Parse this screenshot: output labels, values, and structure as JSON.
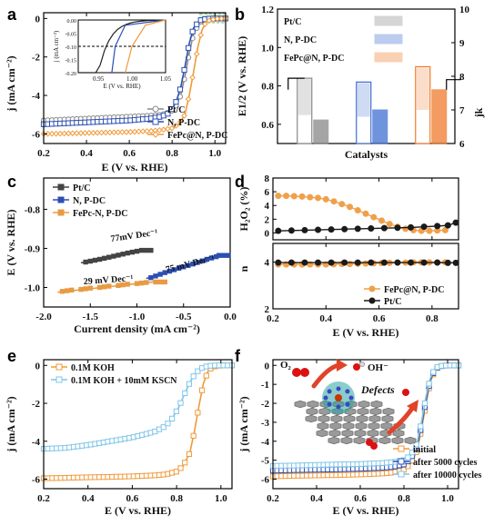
{
  "chart_data": [
    {
      "panel": "a",
      "type": "line",
      "xlabel": "E (V vs. RHE)",
      "ylabel": "j (mA cm⁻²)",
      "xlim": [
        0.2,
        1.05
      ],
      "ylim": [
        -6.5,
        0.3
      ],
      "xticks": [
        "0.2",
        "0.4",
        "0.6",
        "0.8",
        "1.0"
      ],
      "yticks": [
        "0",
        "-2",
        "-4",
        "-6"
      ],
      "series": [
        {
          "name": "Pt/C",
          "color": "#8c8c8c",
          "marker": "circle-open",
          "x": [
            0.2,
            0.3,
            0.4,
            0.5,
            0.6,
            0.7,
            0.75,
            0.78,
            0.8,
            0.82,
            0.84,
            0.86,
            0.88,
            0.9,
            0.93,
            0.96,
            1.0,
            1.05
          ],
          "y": [
            -5.3,
            -5.25,
            -5.2,
            -5.15,
            -5.1,
            -5.05,
            -5.0,
            -4.9,
            -4.8,
            -4.5,
            -4.0,
            -3.0,
            -1.8,
            -0.8,
            -0.2,
            -0.03,
            0,
            0
          ]
        },
        {
          "name": "N, P-DC",
          "color": "#2c4fb3",
          "marker": "square-open",
          "x": [
            0.2,
            0.3,
            0.4,
            0.5,
            0.6,
            0.7,
            0.75,
            0.78,
            0.8,
            0.82,
            0.84,
            0.86,
            0.88,
            0.9,
            0.93,
            0.96,
            1.0,
            1.05
          ],
          "y": [
            -5.5,
            -5.45,
            -5.4,
            -5.35,
            -5.3,
            -5.2,
            -5.1,
            -4.95,
            -4.7,
            -4.3,
            -3.6,
            -2.5,
            -1.3,
            -0.5,
            -0.1,
            -0.02,
            0,
            0
          ]
        },
        {
          "name": "FePc@N, P-DC",
          "color": "#f09a3a",
          "marker": "diamond-open",
          "x": [
            0.2,
            0.3,
            0.4,
            0.5,
            0.6,
            0.7,
            0.75,
            0.8,
            0.83,
            0.86,
            0.88,
            0.9,
            0.92,
            0.94,
            0.96,
            1.0,
            1.05
          ],
          "y": [
            -6.0,
            -5.98,
            -5.95,
            -5.93,
            -5.9,
            -5.85,
            -5.8,
            -5.7,
            -5.5,
            -5.0,
            -4.0,
            -2.8,
            -1.5,
            -0.6,
            -0.15,
            -0.02,
            0
          ]
        }
      ],
      "inset": {
        "ylabel": "j (mA cm⁻²)",
        "xlabel": "E (V vs. RHE)",
        "xlim": [
          0.92,
          1.05
        ],
        "ylim": [
          -0.2,
          0.0
        ],
        "xticks": [
          "0.95",
          "1.00",
          "1.05"
        ],
        "yticks": [
          "0.00",
          "-0.05",
          "-0.10",
          "-0.15",
          "-0.20"
        ]
      }
    },
    {
      "panel": "b",
      "type": "bar",
      "xlabel": "Catalysts",
      "ylabel": "E1/2 (V vs. RHE)",
      "y2label": "jk",
      "categories": [
        "Pt/C",
        "N, P-DC",
        "FePc@N, P-DC"
      ],
      "ylim": [
        0.5,
        1.2
      ],
      "y2lim": [
        6,
        10
      ],
      "yticks": [
        "0.6",
        "0.8",
        "1.0",
        "1.2"
      ],
      "y2ticks": [
        "6",
        "7",
        "8",
        "9",
        "10"
      ],
      "series": [
        {
          "name": "E1/2",
          "axis": "left",
          "values": [
            0.84,
            0.82,
            0.9
          ]
        },
        {
          "name": "jk",
          "axis": "right",
          "values": [
            6.7,
            7.0,
            7.6
          ]
        }
      ],
      "legend": [
        "Pt/C",
        "N, P-DC",
        "FePc@N, P-DC"
      ],
      "colors": [
        "#888888",
        "#3f6fd1",
        "#f07a2c"
      ]
    },
    {
      "panel": "c",
      "type": "line",
      "xlabel": "Current density (mA cm⁻²)",
      "ylabel": "E (V vs. RHE)",
      "xlim": [
        -2.0,
        0.0
      ],
      "ylim": [
        -1.05,
        -0.72
      ],
      "xticks": [
        "-2.0",
        "-1.5",
        "-1.0",
        "-0.5",
        "0.0"
      ],
      "yticks": [
        "-0.8",
        "-0.9",
        "-1.0"
      ],
      "series": [
        {
          "name": "Pt/C",
          "color": "#444444",
          "x": [
            -1.55,
            -1.4,
            -1.25,
            -1.1,
            -0.95
          ],
          "y": [
            -0.935,
            -0.928,
            -0.92,
            -0.912,
            -0.905
          ]
        },
        {
          "name": "N, P-DC",
          "color": "#2c4fb3",
          "x": [
            -0.85,
            -0.7,
            -0.55,
            -0.4,
            -0.25,
            -0.12
          ],
          "y": [
            -0.975,
            -0.962,
            -0.951,
            -0.94,
            -0.928,
            -0.918
          ]
        },
        {
          "name": "FePc-N, P-DC",
          "color": "#e89b42",
          "x": [
            -1.8,
            -1.6,
            -1.4,
            -1.2,
            -1.0,
            -0.8
          ],
          "y": [
            -1.01,
            -1.005,
            -1.0,
            -0.995,
            -0.99,
            -0.986
          ]
        }
      ],
      "annotations": [
        "77mV Dec⁻¹",
        "75 mV Dec⁻¹",
        "29 mV Dec⁻¹"
      ]
    },
    {
      "panel": "d",
      "type": "line",
      "xlabel": "E (V vs. RHE)",
      "ylabel_top": "H₂O₂ (%)",
      "ylabel_bottom": "n",
      "xlim": [
        0.2,
        0.9
      ],
      "xticks": [
        "0.2",
        "0.4",
        "0.6",
        "0.8"
      ],
      "top": {
        "ylim": [
          -1,
          8
        ],
        "yticks": [
          "0",
          "2",
          "4",
          "6",
          "8"
        ]
      },
      "bottom": {
        "ylim": [
          2,
          4.8
        ],
        "yticks": [
          "2",
          "4"
        ]
      },
      "series": [
        {
          "name": "FePc@N, P-DC",
          "color": "#f0a04a",
          "x": [
            0.22,
            0.25,
            0.28,
            0.31,
            0.34,
            0.37,
            0.4,
            0.43,
            0.46,
            0.49,
            0.52,
            0.55,
            0.58,
            0.61,
            0.64,
            0.67,
            0.7,
            0.73,
            0.76,
            0.79,
            0.82,
            0.85
          ],
          "h2o2": [
            5.4,
            5.4,
            5.35,
            5.3,
            5.2,
            5.1,
            4.9,
            4.6,
            4.2,
            3.8,
            3.3,
            2.8,
            2.3,
            1.8,
            1.3,
            0.9,
            0.6,
            0.4,
            0.3,
            0.3,
            0.35,
            0.4
          ],
          "n": [
            3.9,
            3.9,
            3.9,
            3.9,
            3.9,
            3.9,
            3.9,
            3.91,
            3.92,
            3.92,
            3.93,
            3.94,
            3.95,
            3.96,
            3.97,
            3.98,
            3.98,
            3.99,
            3.99,
            3.99,
            3.99,
            3.99
          ]
        },
        {
          "name": "Pt/C",
          "color": "#1a1a1a",
          "x": [
            0.22,
            0.27,
            0.32,
            0.37,
            0.42,
            0.47,
            0.52,
            0.57,
            0.62,
            0.67,
            0.72,
            0.77,
            0.82,
            0.86,
            0.89
          ],
          "h2o2": [
            0.3,
            0.35,
            0.4,
            0.45,
            0.5,
            0.55,
            0.6,
            0.65,
            0.7,
            0.75,
            0.8,
            0.9,
            1.0,
            1.1,
            1.5
          ],
          "n": [
            3.98,
            3.98,
            3.98,
            3.98,
            3.98,
            3.98,
            3.98,
            3.98,
            3.98,
            3.98,
            3.98,
            3.98,
            3.98,
            3.97,
            3.97
          ]
        }
      ]
    },
    {
      "panel": "e",
      "type": "line",
      "xlabel": "E (V vs. RHE)",
      "ylabel": "j (mA cm⁻²)",
      "xlim": [
        0.2,
        1.05
      ],
      "ylim": [
        -6.5,
        0.3
      ],
      "xticks": [
        "0.2",
        "0.4",
        "0.6",
        "0.8",
        "1.0"
      ],
      "yticks": [
        "0",
        "-2",
        "-4",
        "-6"
      ],
      "series": [
        {
          "name": "0.1M KOH",
          "color": "#f09a3a",
          "x": [
            0.2,
            0.3,
            0.4,
            0.5,
            0.6,
            0.7,
            0.75,
            0.8,
            0.83,
            0.86,
            0.88,
            0.9,
            0.92,
            0.94,
            0.96,
            1.0,
            1.05
          ],
          "y": [
            -5.95,
            -5.93,
            -5.9,
            -5.88,
            -5.85,
            -5.8,
            -5.75,
            -5.6,
            -5.3,
            -4.6,
            -3.5,
            -2.2,
            -1.0,
            -0.35,
            -0.08,
            0,
            0
          ]
        },
        {
          "name": "0.1M KOH + 10mM KSCN",
          "color": "#7fc6e8",
          "x": [
            0.2,
            0.3,
            0.4,
            0.5,
            0.6,
            0.7,
            0.75,
            0.78,
            0.81,
            0.84,
            0.86,
            0.88,
            0.9,
            0.92,
            0.94,
            0.96,
            1.0,
            1.05
          ],
          "y": [
            -4.4,
            -4.35,
            -4.2,
            -4.0,
            -3.8,
            -3.5,
            -3.2,
            -2.8,
            -2.2,
            -1.4,
            -0.9,
            -0.5,
            -0.25,
            -0.1,
            -0.04,
            -0.01,
            0,
            0
          ]
        }
      ]
    },
    {
      "panel": "f",
      "type": "line",
      "xlabel": "E (V vs. RHE)",
      "ylabel": "j (mA cm⁻²)",
      "xlim": [
        0.2,
        1.05
      ],
      "ylim": [
        -6.5,
        0.3
      ],
      "xticks": [
        "0.2",
        "0.4",
        "0.6",
        "0.8",
        "1.0"
      ],
      "yticks": [
        "0",
        "-1",
        "-2",
        "-3",
        "-4",
        "-5",
        "-6"
      ],
      "series": [
        {
          "name": "initial",
          "color": "#f09a3a",
          "x": [
            0.2,
            0.3,
            0.4,
            0.5,
            0.6,
            0.7,
            0.75,
            0.8,
            0.83,
            0.86,
            0.88,
            0.9,
            0.92,
            0.94,
            0.96,
            1.0,
            1.05
          ],
          "y": [
            -5.85,
            -5.82,
            -5.8,
            -5.78,
            -5.75,
            -5.7,
            -5.65,
            -5.5,
            -5.2,
            -4.5,
            -3.4,
            -2.1,
            -0.9,
            -0.3,
            -0.06,
            0,
            0
          ]
        },
        {
          "name": "after 5000 cycles",
          "color": "#2c4fb3",
          "x": [
            0.2,
            0.3,
            0.4,
            0.5,
            0.6,
            0.7,
            0.75,
            0.8,
            0.83,
            0.86,
            0.88,
            0.9,
            0.92,
            0.94,
            0.96,
            1.0,
            1.05
          ],
          "y": [
            -5.55,
            -5.52,
            -5.5,
            -5.48,
            -5.45,
            -5.4,
            -5.35,
            -5.22,
            -4.95,
            -4.3,
            -3.2,
            -1.9,
            -0.8,
            -0.25,
            -0.05,
            0,
            0
          ]
        },
        {
          "name": "after 10000 cycles",
          "color": "#7fc6e8",
          "x": [
            0.2,
            0.3,
            0.4,
            0.5,
            0.6,
            0.7,
            0.75,
            0.8,
            0.83,
            0.86,
            0.88,
            0.9,
            0.92,
            0.94,
            0.96,
            1.0,
            1.05
          ],
          "y": [
            -5.3,
            -5.28,
            -5.25,
            -5.22,
            -5.2,
            -5.15,
            -5.1,
            -5.0,
            -4.75,
            -4.1,
            -3.0,
            -1.7,
            -0.7,
            -0.2,
            -0.04,
            0,
            0
          ]
        }
      ],
      "inset_labels": [
        "O₂",
        "OH⁻",
        "Defects"
      ]
    }
  ]
}
